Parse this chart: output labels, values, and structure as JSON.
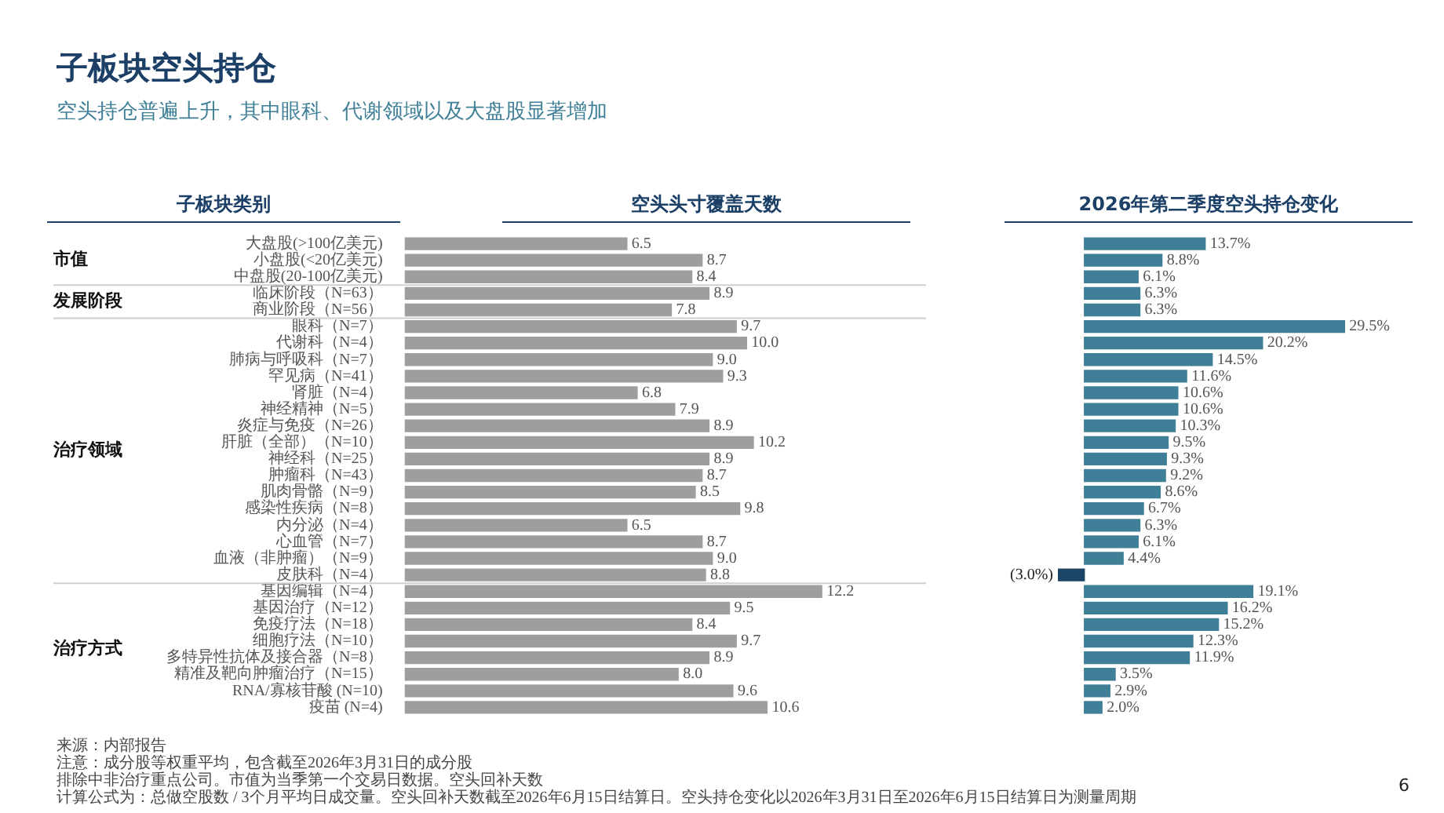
{
  "chart_data": [
    {
      "type": "bar",
      "orientation": "horizontal",
      "title": "子板块空头持仓",
      "subtitle": "空头持仓普遍上升，其中眼科、代谢领域以及大盘股显著增加",
      "ylabel": "子板块类别",
      "xlabel": "空头头寸覆盖天数",
      "categories": [
        "大盘股(>100亿美元)",
        "小盘股(<20亿美元)",
        "中盘股(20-100亿美元)",
        "临床阶段（N=63）",
        "商业阶段（N=56）",
        "眼科（N=7）",
        "代谢科（N=4）",
        "肺病与呼吸科（N=7）",
        "罕见病（N=41）",
        "肾脏（N=4）",
        "神经精神（N=5）",
        "炎症与免疫（N=26）",
        "肝脏（全部）（N=10）",
        "神经科（N=25）",
        "肿瘤科（N=43）",
        "肌肉骨骼（N=9）",
        "感染性疾病（N=8）",
        "内分泌（N=4）",
        "心血管（N=7）",
        "血液（非肿瘤）（N=9）",
        "皮肤科（N=4）",
        "基因编辑（N=4）",
        "基因治疗（N=12）",
        "免疫疗法（N=18）",
        "细胞疗法（N=10）",
        "多特异性抗体及接合器（N=8）",
        "精准及靶向肿瘤治疗（N=15）",
        "RNA/寡核苷酸 (N=10)",
        "疫苗 (N=4)"
      ],
      "values": [
        6.5,
        8.7,
        8.4,
        8.9,
        7.8,
        9.7,
        10.0,
        9.0,
        9.3,
        6.8,
        7.9,
        8.9,
        10.2,
        8.9,
        8.7,
        8.5,
        9.8,
        6.5,
        8.7,
        9.0,
        8.8,
        12.2,
        9.5,
        8.4,
        9.7,
        8.9,
        8.0,
        9.6,
        10.6
      ],
      "value_labels": [
        "6.5",
        "8.7",
        "8.4",
        "8.9",
        "7.8",
        "9.7",
        "10.0",
        "9.0",
        "9.3",
        "6.8",
        "7.9",
        "8.9",
        "10.2",
        "8.9",
        "8.7",
        "8.5",
        "9.8",
        "6.5",
        "8.7",
        "9.0",
        "8.8",
        "12.2",
        "9.5",
        "8.4",
        "9.7",
        "8.9",
        "8.0",
        "9.6",
        "10.6"
      ],
      "color": "#9e9e9e",
      "legend": false,
      "tick_labels": "y",
      "annotations": [
        "市值",
        "发展阶段",
        "治疗领域",
        "治疗方式"
      ]
    },
    {
      "type": "bar",
      "orientation": "horizontal",
      "xlabel": "2026年第二季度空头持仓变化",
      "categories": [
        null,
        null,
        null,
        null,
        null,
        null,
        null,
        null,
        null,
        null,
        null,
        null,
        null,
        null,
        null,
        null,
        null,
        null,
        null,
        null,
        null,
        null,
        null,
        null,
        null,
        null,
        null,
        null,
        null
      ],
      "values": [
        13.7,
        8.8,
        6.1,
        6.3,
        6.3,
        29.5,
        20.2,
        14.5,
        11.6,
        10.6,
        10.6,
        10.3,
        9.5,
        9.3,
        9.2,
        8.6,
        6.7,
        6.3,
        6.1,
        4.4,
        -3.0,
        19.1,
        16.2,
        15.2,
        12.3,
        11.9,
        3.5,
        2.9,
        2.0
      ],
      "value_labels": [
        "13.7%",
        "8.8%",
        "6.1%",
        "6.3%",
        "6.3%",
        "29.5%",
        "20.2%",
        "14.5%",
        "11.6%",
        "10.6%",
        "10.6%",
        "10.3%",
        "9.5%",
        "9.3%",
        "9.2%",
        "8.6%",
        "6.7%",
        "6.3%",
        "6.1%",
        "4.4%",
        "(3.0%)",
        "19.1%",
        "16.2%",
        "15.2%",
        "12.3%",
        "11.9%",
        "3.5%",
        "2.9%",
        "2.0%"
      ],
      "colors": [
        "#3f7f97",
        "#3f7f97",
        "#3f7f97",
        "#3f7f97",
        "#3f7f97",
        "#3f7f97",
        "#3f7f97",
        "#3f7f97",
        "#3f7f97",
        "#3f7f97",
        "#3f7f97",
        "#3f7f97",
        "#3f7f97",
        "#3f7f97",
        "#3f7f97",
        "#3f7f97",
        "#3f7f97",
        "#3f7f97",
        "#3f7f97",
        "#3f7f97",
        "#1b4466",
        "#3f7f97",
        "#3f7f97",
        "#3f7f97",
        "#3f7f97",
        "#3f7f97",
        "#3f7f97",
        "#3f7f97",
        "#3f7f97"
      ],
      "legend": false,
      "tick_labels": false,
      "annotations": [
        "来源：内部报告",
        "注意：成分股等权重平均，包含截至2026年3月31日的成分股",
        "排除中非治疗重点公司。市值为当季第一个交易日数据。空头回补天数",
        "计算公式为：总做空股数 / 3个月平均日成交量。空头回补天数截至2026年6月15日结算日。空头持仓变化以2026年3月31日至2026年6月15日结算日为测量周期",
        "6"
      ]
    }
  ]
}
